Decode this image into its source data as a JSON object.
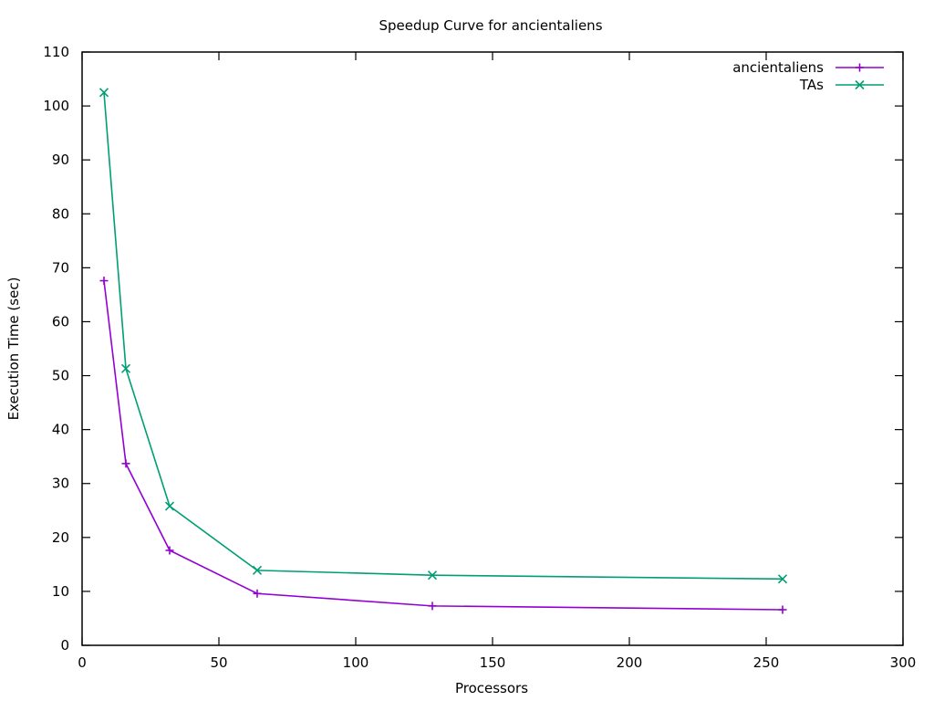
{
  "chart_data": {
    "type": "line",
    "title": "Speedup Curve for ancientaliens",
    "xlabel": "Processors",
    "ylabel": "Execution Time (sec)",
    "xlim": [
      0,
      300
    ],
    "ylim": [
      0,
      110
    ],
    "xticks": [
      0,
      50,
      100,
      150,
      200,
      250,
      300
    ],
    "yticks": [
      0,
      10,
      20,
      30,
      40,
      50,
      60,
      70,
      80,
      90,
      100,
      110
    ],
    "grid": false,
    "legend_position": "top-right",
    "series": [
      {
        "name": "ancientaliens",
        "color": "#9400d3",
        "marker": "plus",
        "x": [
          8,
          16,
          32,
          64,
          128,
          256
        ],
        "y": [
          67.6,
          33.7,
          17.6,
          9.6,
          7.3,
          6.6
        ]
      },
      {
        "name": "TAs",
        "color": "#009e73",
        "marker": "cross",
        "x": [
          8,
          16,
          32,
          64,
          128,
          256
        ],
        "y": [
          102.5,
          51.3,
          25.8,
          13.9,
          13.0,
          12.3
        ]
      }
    ]
  }
}
